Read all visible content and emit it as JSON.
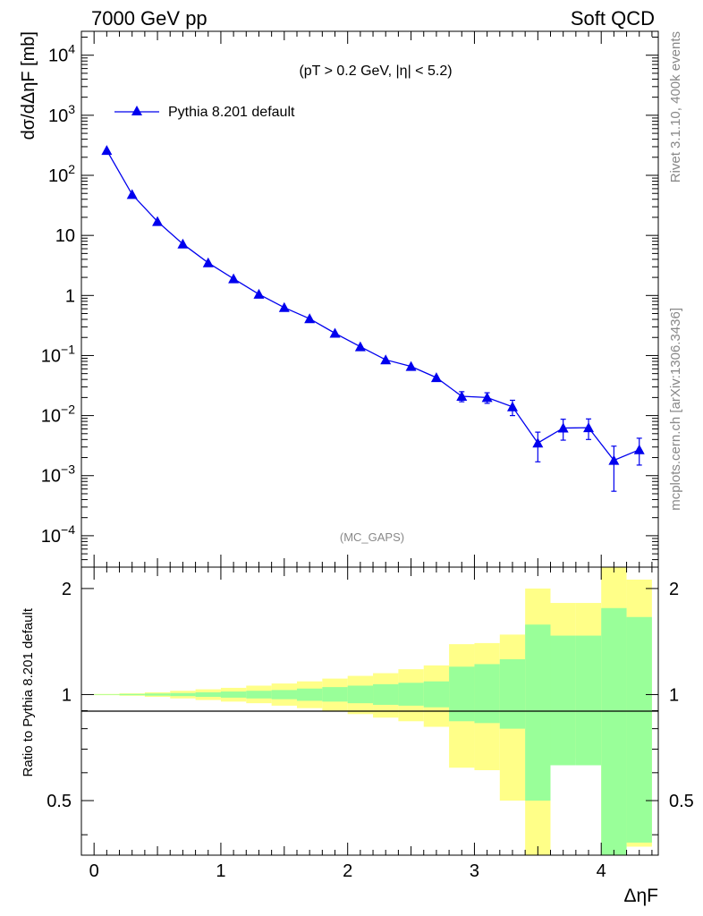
{
  "header": {
    "left": "7000 GeV pp",
    "right": "Soft QCD"
  },
  "side_labels": {
    "rivet": "Rivet 3.1.10,  400k events",
    "mcplots": "mcplots.cern.ch [arXiv:1306.3436]"
  },
  "chart_data": [
    {
      "type": "line",
      "panel": "main",
      "title": "",
      "cut_label": "(pT > 0.2 GeV, |η| < 5.2)",
      "analysis_label": "(MC_GAPS)",
      "ylabel": "dσ/dΔηF [mb]",
      "ylog": true,
      "ylim": [
        3e-05,
        25000
      ],
      "xlim": [
        -0.1,
        4.45
      ],
      "yticks": [
        "10^-4",
        "10^-3",
        "10^-2",
        "10^-1",
        "1",
        "10",
        "10^2",
        "10^3",
        "10^4"
      ],
      "legend": {
        "placement": "top-left",
        "entries": [
          "Pythia 8.201 default"
        ]
      },
      "color": "#0000ee",
      "series": [
        {
          "name": "Pythia 8.201 default",
          "x": [
            0.1,
            0.3,
            0.5,
            0.7,
            0.9,
            1.1,
            1.3,
            1.5,
            1.7,
            1.9,
            2.1,
            2.3,
            2.5,
            2.7,
            2.9,
            3.1,
            3.3,
            3.5,
            3.7,
            3.9,
            4.1,
            4.3
          ],
          "y": [
            260,
            48,
            17,
            7.2,
            3.5,
            1.9,
            1.05,
            0.63,
            0.41,
            0.235,
            0.14,
            0.085,
            0.066,
            0.043,
            0.021,
            0.02,
            0.014,
            0.0035,
            0.0062,
            0.0063,
            0.0018,
            0.0027
          ],
          "err_low": [
            0,
            0,
            0,
            0,
            0,
            0,
            0,
            0,
            0,
            0,
            0,
            0,
            0,
            0,
            0.004,
            0.004,
            0.004,
            0.0018,
            0.0023,
            0.0023,
            0.00125,
            0.0012
          ],
          "err_high": [
            0,
            0,
            0,
            0,
            0,
            0,
            0,
            0,
            0,
            0,
            0,
            0,
            0,
            0,
            0.004,
            0.004,
            0.004,
            0.0018,
            0.0025,
            0.0025,
            0.0013,
            0.0015
          ]
        }
      ]
    },
    {
      "type": "area",
      "panel": "ratio",
      "ylabel": "Ratio to Pythia 8.201 default",
      "xlabel": "ΔηF",
      "ylim": [
        0.35,
        2.3
      ],
      "xlim": [
        -0.1,
        4.45
      ],
      "xticks": [
        "0",
        "1",
        "2",
        "3",
        "4"
      ],
      "yticks": [
        "0.5",
        "1",
        "2"
      ],
      "reference_line": 1,
      "bin_edges": [
        0,
        0.2,
        0.4,
        0.6,
        0.8,
        1.0,
        1.2,
        1.4,
        1.6,
        1.8,
        2.0,
        2.2,
        2.4,
        2.6,
        2.8,
        3.0,
        3.2,
        3.4,
        3.6,
        3.8,
        4.0,
        4.2,
        4.4
      ],
      "bands": [
        {
          "name": "stat",
          "color": "#99ff99",
          "low": [
            0.998,
            0.996,
            0.993,
            0.99,
            0.985,
            0.98,
            0.975,
            0.97,
            0.96,
            0.955,
            0.945,
            0.935,
            0.93,
            0.92,
            0.84,
            0.83,
            0.8,
            0.5,
            0.63,
            0.63,
            0.3,
            0.38
          ],
          "high": [
            1.002,
            1.004,
            1.007,
            1.01,
            1.015,
            1.02,
            1.025,
            1.03,
            1.04,
            1.05,
            1.06,
            1.07,
            1.08,
            1.09,
            1.2,
            1.22,
            1.26,
            1.58,
            1.47,
            1.47,
            1.76,
            1.66
          ]
        },
        {
          "name": "total",
          "color": "#ffff88",
          "low": [
            0.996,
            0.992,
            0.985,
            0.975,
            0.965,
            0.955,
            0.945,
            0.93,
            0.915,
            0.895,
            0.88,
            0.86,
            0.84,
            0.81,
            0.62,
            0.61,
            0.5,
            0.3,
            0.66,
            0.66,
            0.3,
            0.37
          ],
          "high": [
            1.004,
            1.008,
            1.015,
            1.025,
            1.035,
            1.045,
            1.06,
            1.075,
            1.09,
            1.11,
            1.13,
            1.15,
            1.18,
            1.21,
            1.39,
            1.4,
            1.48,
            2.0,
            1.82,
            1.82,
            2.3,
            2.12
          ]
        }
      ]
    }
  ]
}
